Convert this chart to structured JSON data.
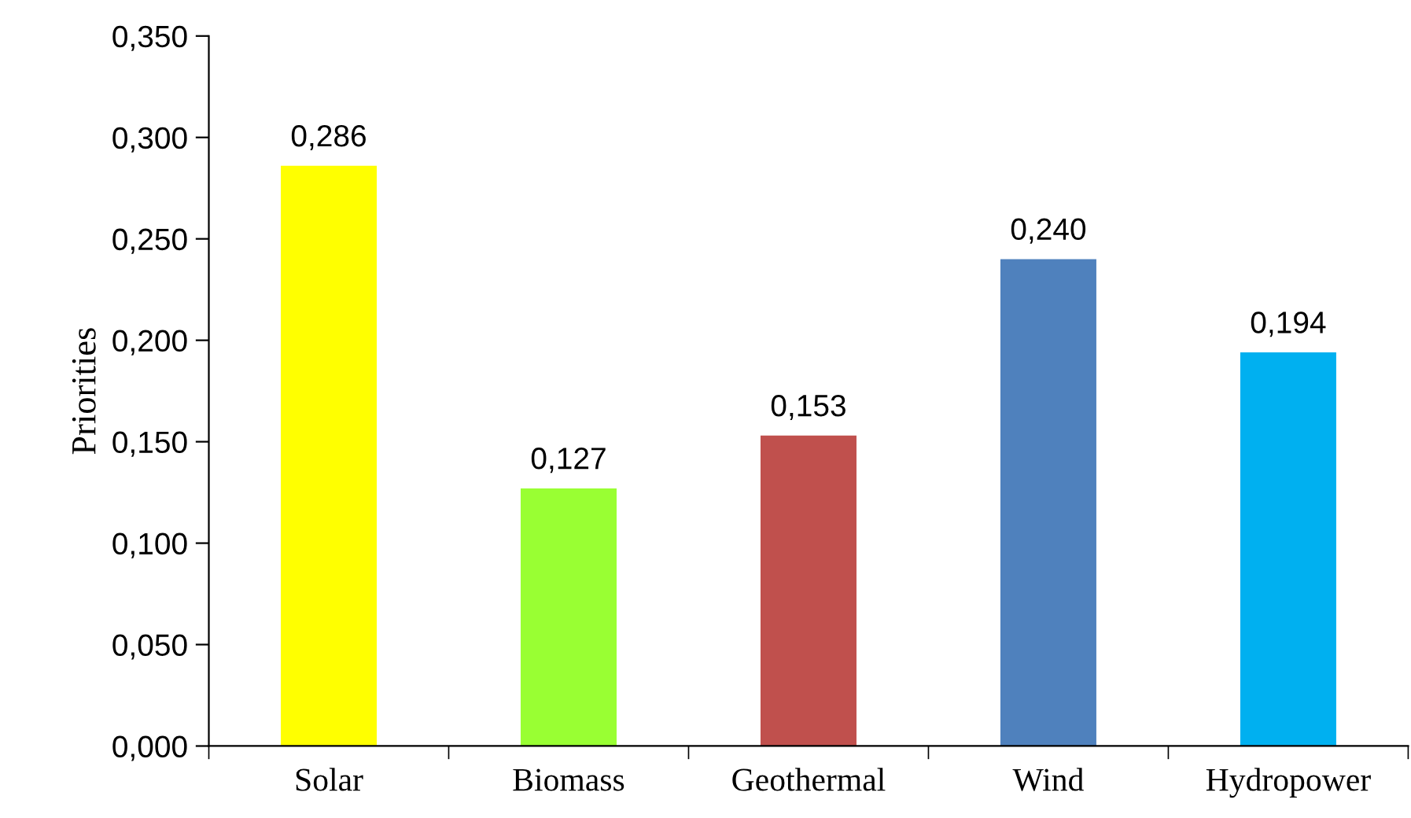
{
  "chart_data": {
    "type": "bar",
    "ylabel": "Priorities",
    "categories": [
      "Solar",
      "Biomass",
      "Geothermal",
      "Wind",
      "Hydropower"
    ],
    "values": [
      0.286,
      0.127,
      0.153,
      0.24,
      0.194
    ],
    "colors": [
      "#ffff00",
      "#99ff33",
      "#c0504d",
      "#4f81bd",
      "#00b0f0"
    ],
    "value_labels": [
      "0,286",
      "0,127",
      "0,153",
      "0,240",
      "0,194"
    ],
    "ylim": [
      0,
      0.35
    ],
    "yticks": [
      {
        "value": 0,
        "label": "0,000"
      },
      {
        "value": 0.05,
        "label": "0,050"
      },
      {
        "value": 0.1,
        "label": "0,100"
      },
      {
        "value": 0.15,
        "label": "0,150"
      },
      {
        "value": 0.2,
        "label": "0,200"
      },
      {
        "value": 0.25,
        "label": "0,250"
      },
      {
        "value": 0.3,
        "label": "0,300"
      },
      {
        "value": 0.35,
        "label": "0,350"
      }
    ],
    "grid": false,
    "legend": false
  }
}
